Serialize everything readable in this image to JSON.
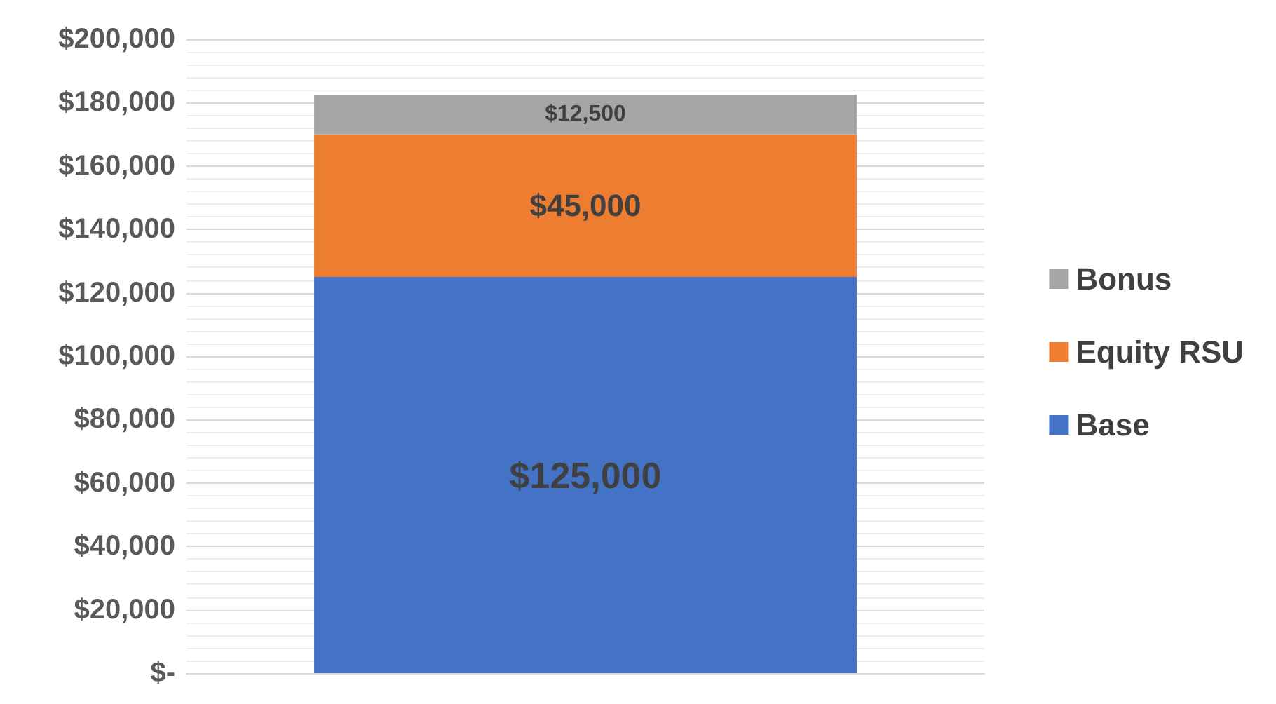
{
  "chart_data": {
    "type": "bar",
    "stacked": true,
    "categories": [
      null
    ],
    "series": [
      {
        "name": "Base",
        "color": "#4472c4",
        "values": [
          125000
        ],
        "value_labels": [
          "$125,000"
        ]
      },
      {
        "name": "Equity RSU",
        "color": "#ed7d31",
        "values": [
          45000
        ],
        "value_labels": [
          "$45,000"
        ]
      },
      {
        "name": "Bonus",
        "color": "#a5a5a5",
        "values": [
          12500
        ],
        "value_labels": [
          "$12,500"
        ]
      }
    ],
    "ylim": [
      0,
      200000
    ],
    "yticks": [
      {
        "value": 0,
        "label": "$-"
      },
      {
        "value": 20000,
        "label": "$20,000"
      },
      {
        "value": 40000,
        "label": "$40,000"
      },
      {
        "value": 60000,
        "label": "$60,000"
      },
      {
        "value": 80000,
        "label": "$80,000"
      },
      {
        "value": 100000,
        "label": "$100,000"
      },
      {
        "value": 120000,
        "label": "$120,000"
      },
      {
        "value": 140000,
        "label": "$140,000"
      },
      {
        "value": 160000,
        "label": "$160,000"
      },
      {
        "value": 180000,
        "label": "$180,000"
      },
      {
        "value": 200000,
        "label": "$200,000"
      }
    ],
    "grid": true,
    "legend": "right"
  }
}
